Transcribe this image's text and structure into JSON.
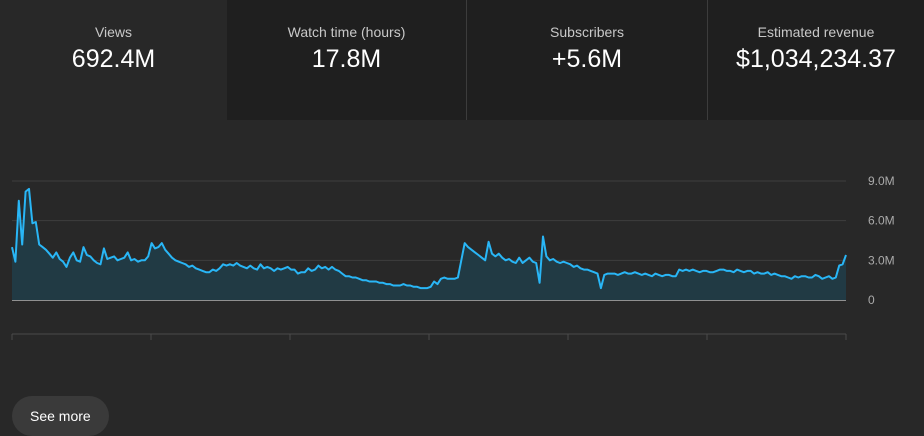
{
  "metrics": [
    {
      "label": "Views",
      "value": "692.4M"
    },
    {
      "label": "Watch time (hours)",
      "value": "17.8M"
    },
    {
      "label": "Subscribers",
      "value": "+5.6M"
    },
    {
      "label": "Estimated revenue",
      "value": "$1,034,234.37"
    }
  ],
  "see_more_label": "See more",
  "colors": {
    "line": "#29b6f6",
    "area": "#213a44",
    "grid": "#3e3e3e"
  },
  "chart_data": {
    "type": "area",
    "series": [
      {
        "values": [
          4.0,
          2.9,
          7.5,
          4.2,
          8.2,
          8.4,
          5.8,
          5.9,
          4.2,
          4.0,
          3.8,
          3.5,
          3.2,
          3.6,
          3.1,
          2.9,
          2.5,
          3.2,
          3.6,
          3.0,
          2.9,
          4.0,
          3.4,
          3.3,
          3.0,
          2.8,
          2.7,
          3.9,
          3.1,
          3.2,
          3.3,
          3.0,
          3.1,
          3.2,
          3.6,
          3.0,
          3.1,
          2.9,
          3.0,
          3.0,
          3.3,
          4.3,
          3.9,
          4.0,
          4.3,
          3.8,
          3.5,
          3.2,
          3.0,
          2.9,
          2.8,
          2.7,
          2.5,
          2.6,
          2.4,
          2.3,
          2.2,
          2.1,
          2.1,
          2.3,
          2.2,
          2.4,
          2.7,
          2.6,
          2.7,
          2.6,
          2.8,
          2.6,
          2.5,
          2.4,
          2.6,
          2.4,
          2.3,
          2.7,
          2.4,
          2.5,
          2.4,
          2.2,
          2.4,
          2.3,
          2.4,
          2.5,
          2.3,
          2.3,
          2.0,
          2.1,
          2.1,
          2.4,
          2.2,
          2.3,
          2.6,
          2.4,
          2.5,
          2.3,
          2.5,
          2.3,
          2.2,
          2.0,
          1.8,
          1.8,
          1.7,
          1.7,
          1.6,
          1.5,
          1.5,
          1.4,
          1.4,
          1.4,
          1.3,
          1.3,
          1.2,
          1.2,
          1.1,
          1.1,
          1.1,
          1.2,
          1.1,
          1.1,
          1.0,
          1.0,
          0.9,
          0.9,
          0.9,
          1.0,
          1.4,
          1.2,
          1.6,
          1.7,
          1.6,
          1.6,
          1.6,
          1.7,
          3.0,
          4.3,
          4.0,
          3.8,
          3.6,
          3.4,
          3.2,
          3.0,
          4.4,
          3.5,
          3.3,
          3.5,
          3.2,
          3.0,
          3.1,
          2.9,
          2.8,
          3.2,
          2.8,
          3.0,
          3.2,
          2.9,
          2.8,
          1.3,
          4.8,
          3.3,
          3.0,
          3.1,
          2.9,
          2.8,
          2.9,
          2.8,
          2.7,
          2.5,
          2.6,
          2.4,
          2.3,
          2.3,
          2.2,
          2.1,
          2.0,
          0.9,
          1.9,
          2.0,
          2.0,
          2.0,
          1.9,
          2.0,
          2.1,
          2.0,
          2.0,
          2.1,
          2.0,
          1.9,
          2.0,
          1.9,
          1.8,
          2.0,
          1.9,
          1.8,
          1.9,
          1.9,
          1.8,
          1.8,
          2.3,
          2.2,
          2.3,
          2.2,
          2.3,
          2.2,
          2.1,
          2.2,
          2.2,
          2.1,
          2.1,
          2.2,
          2.3,
          2.3,
          2.2,
          2.2,
          2.1,
          2.3,
          2.2,
          2.1,
          2.2,
          2.2,
          2.0,
          2.1,
          2.0,
          2.0,
          2.1,
          1.9,
          2.0,
          1.9,
          1.8,
          1.8,
          1.7,
          1.6,
          1.8,
          1.7,
          1.8,
          1.8,
          1.7,
          1.7,
          1.9,
          1.8,
          1.6,
          1.7,
          1.8,
          1.6,
          1.7,
          2.6,
          2.7,
          3.4
        ]
      }
    ],
    "y_ticks": [
      "9.0M",
      "6.0M",
      "3.0M",
      "0"
    ],
    "ylim": [
      0,
      9
    ],
    "grid": true
  }
}
